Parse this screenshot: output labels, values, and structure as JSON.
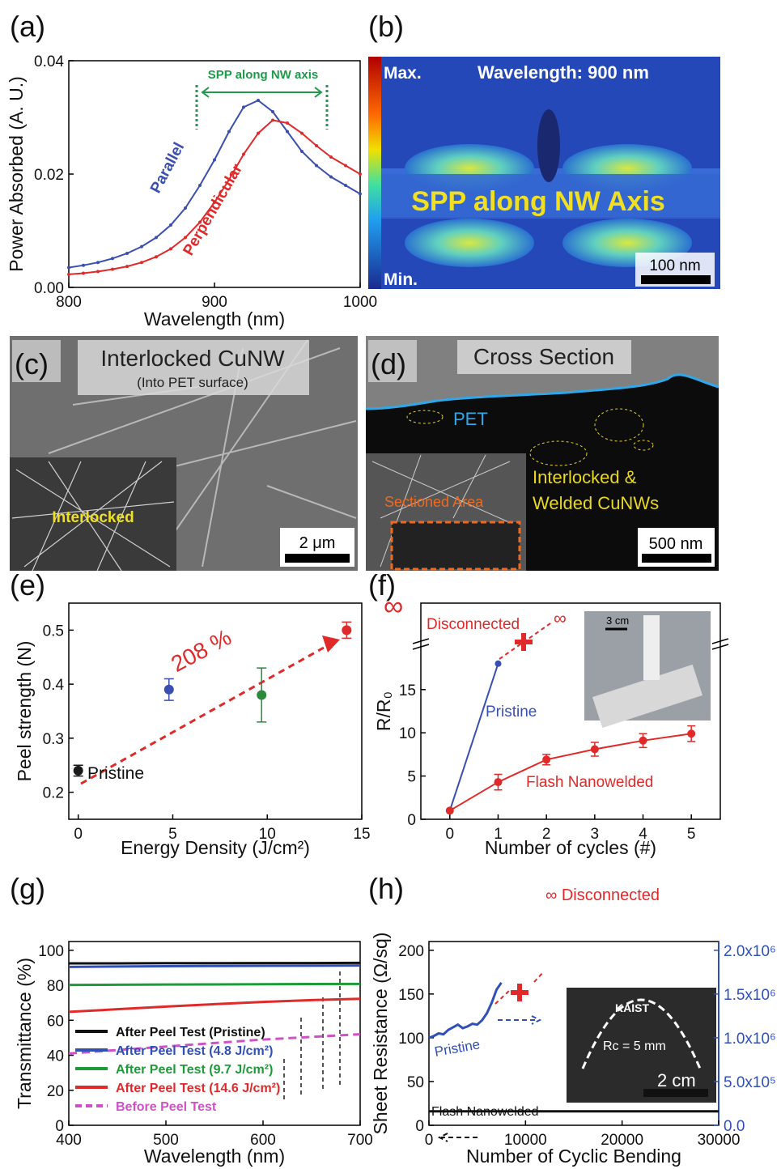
{
  "chart_data": [
    {
      "type": "line",
      "panel_label": "(a)",
      "x_label": "Wavelength (nm)",
      "y_label": "Power Absorbed (A. U.)",
      "xlim": [
        800,
        1000
      ],
      "ylim": [
        0,
        0.04
      ],
      "xticks": [
        800,
        900,
        1000
      ],
      "yticks": [
        {
          "value": 0,
          "label": "0.00"
        },
        {
          "value": 0.02,
          "label": "0.02"
        },
        {
          "value": 0.04,
          "label": "0.04"
        }
      ],
      "markers": true,
      "annotations": [
        "SPP along NW axis"
      ],
      "series": [
        {
          "name": "Parallel",
          "color": "#3a4fb0",
          "x": [
            800,
            810,
            820,
            830,
            840,
            850,
            860,
            870,
            880,
            890,
            900,
            910,
            920,
            930,
            940,
            950,
            960,
            970,
            980,
            990,
            1000
          ],
          "values": [
            0.0035,
            0.0039,
            0.0044,
            0.0051,
            0.006,
            0.0072,
            0.0088,
            0.011,
            0.014,
            0.018,
            0.0225,
            0.0275,
            0.0318,
            0.033,
            0.031,
            0.0275,
            0.024,
            0.0215,
            0.0195,
            0.018,
            0.0165
          ]
        },
        {
          "name": "Perpendicular",
          "color": "#e02a2a",
          "x": [
            800,
            810,
            820,
            830,
            840,
            850,
            860,
            870,
            880,
            890,
            900,
            910,
            920,
            930,
            940,
            950,
            960,
            970,
            980,
            990,
            1000
          ],
          "values": [
            0.0023,
            0.0025,
            0.0028,
            0.0032,
            0.0037,
            0.0044,
            0.0054,
            0.0068,
            0.0088,
            0.0115,
            0.015,
            0.019,
            0.0235,
            0.0272,
            0.0295,
            0.029,
            0.0272,
            0.025,
            0.023,
            0.0215,
            0.02
          ]
        }
      ]
    },
    {
      "type": "scatter",
      "panel_label": "(e)",
      "x_label": "Energy Density (J/cm²)",
      "y_label": "Peel strength (N)",
      "xlim": [
        -0.5,
        15
      ],
      "ylim": [
        0.15,
        0.55
      ],
      "xticks": [
        0,
        5,
        10,
        15
      ],
      "yticks": [
        0.2,
        0.3,
        0.4,
        0.5
      ],
      "annotations": [
        "Pristine",
        "208 %"
      ],
      "x": [
        0,
        4.8,
        9.7,
        14.2
      ],
      "values": [
        0.24,
        0.39,
        0.38,
        0.5
      ],
      "errors": [
        0.01,
        0.02,
        0.05,
        0.015
      ],
      "colors": [
        "#1a1a1a",
        "#3a4fb0",
        "#2a8a3a",
        "#e02a2a"
      ]
    },
    {
      "type": "line",
      "panel_label": "(f)",
      "x_label": "Number of cycles (#)",
      "y_label": "R/R₀",
      "xlim": [
        -0.6,
        5.6
      ],
      "ylim": [
        0,
        25
      ],
      "xticks": [
        0,
        1,
        2,
        3,
        4,
        5
      ],
      "yticks": [
        0,
        5,
        10,
        15
      ],
      "markers": true,
      "annotations": [
        "∞",
        "Disconnected",
        "∞",
        "3 cm"
      ],
      "series": [
        {
          "name": "Pristine",
          "color": "#3a4fb0",
          "x": [
            0,
            1
          ],
          "values": [
            1,
            18
          ]
        },
        {
          "name": "Flash Nanowelded",
          "color": "#e02a2a",
          "x": [
            0,
            1,
            2,
            3,
            4,
            5
          ],
          "values": [
            1,
            4.3,
            6.9,
            8.1,
            9.1,
            9.9
          ],
          "errors": [
            null,
            0.9,
            0.6,
            0.8,
            0.8,
            0.9
          ]
        }
      ]
    },
    {
      "type": "line",
      "panel_label": "(g)",
      "x_label": "Wavelength (nm)",
      "y_label": "Transmittance (%)",
      "xlim": [
        400,
        700
      ],
      "ylim": [
        0,
        105
      ],
      "xticks": [
        400,
        500,
        600,
        700
      ],
      "yticks": [
        0,
        20,
        40,
        60,
        80,
        100
      ],
      "legend": "lower left",
      "series": [
        {
          "name": "After Peel Test (Pristine)",
          "color": "#111111",
          "x": [
            400,
            450,
            500,
            550,
            600,
            650,
            700
          ],
          "values": [
            92.5,
            92.5,
            92.6,
            92.6,
            92.7,
            92.7,
            92.8
          ]
        },
        {
          "name": "After Peel Test (4.8 J/cm²)",
          "color": "#3050b8",
          "x": [
            400,
            450,
            500,
            550,
            600,
            650,
            700
          ],
          "values": [
            90.5,
            90.7,
            90.9,
            91,
            91.1,
            91.2,
            91.3
          ]
        },
        {
          "name": "After Peel Test (9.7 J/cm²)",
          "color": "#1f9a3a",
          "x": [
            400,
            450,
            500,
            550,
            600,
            650,
            700
          ],
          "values": [
            80.2,
            80.3,
            80.4,
            80.5,
            80.6,
            80.7,
            80.8
          ]
        },
        {
          "name": "After Peel Test (14.6 J/cm²)",
          "color": "#e02a2a",
          "x": [
            400,
            450,
            500,
            550,
            600,
            650,
            700
          ],
          "values": [
            64.8,
            66.3,
            67.8,
            69.2,
            70.5,
            71.5,
            72.3
          ]
        },
        {
          "name": "Before Peel Test",
          "color": "#d050c8",
          "dash": true,
          "x": [
            400,
            450,
            500,
            550,
            600,
            650,
            700
          ],
          "values": [
            41,
            43,
            45,
            47,
            49,
            50.5,
            52
          ]
        }
      ]
    },
    {
      "type": "line",
      "panel_label": "(h)",
      "x_label": "Number of Cyclic Bending",
      "y_label": "Sheet Resistance (Ω/sq)",
      "xlim": [
        0,
        30000
      ],
      "ylim": [
        0,
        210
      ],
      "y2lim": [
        0,
        2100000
      ],
      "xticks": [
        0,
        10000,
        20000,
        30000
      ],
      "yticks": [
        0,
        50,
        100,
        150,
        200
      ],
      "y2ticks": [
        {
          "value": 0,
          "label": "0.0"
        },
        {
          "value": 500000,
          "label": "5.0x10⁵"
        },
        {
          "value": 1000000,
          "label": "1.0x10⁶"
        },
        {
          "value": 1500000,
          "label": "1.5x10⁶"
        },
        {
          "value": 2000000,
          "label": "2.0x10⁶"
        }
      ],
      "y2color": "#3050b8",
      "annotations": [
        "∞ Disconnected",
        "Rc = 5 mm",
        "2 cm",
        "KAIST"
      ],
      "series": [
        {
          "name": "Pristine",
          "color": "#3050b8",
          "axis": "y2",
          "x": [
            0,
            500,
            1000,
            1500,
            2000,
            2500,
            3000,
            3500,
            4000,
            4500,
            5000,
            5500,
            6000,
            6500,
            7000,
            7500
          ],
          "values": [
            1000000,
            1020000,
            1050000,
            1040000,
            1090000,
            1120000,
            1150000,
            1110000,
            1130000,
            1160000,
            1150000,
            1200000,
            1280000,
            1400000,
            1550000,
            1630000
          ]
        },
        {
          "name": "Flash Nanowelded",
          "color": "#111111",
          "x": [
            0,
            30000
          ],
          "values": [
            16,
            16
          ]
        }
      ]
    }
  ],
  "image_panels": [
    {
      "label": "(b)",
      "texts": [
        "Max.",
        "Wavelength: 900 nm",
        "SPP along NW Axis",
        "Min.",
        "100 nm"
      ]
    },
    {
      "label": "(c)",
      "texts": [
        "Interlocked CuNW",
        "(Into PET surface)",
        "Interlocked",
        "2 μm"
      ]
    },
    {
      "label": "(d)",
      "texts": [
        "Cross Section",
        "PET",
        "Interlocked &",
        "Welded CuNWs",
        "Sectioned Area",
        "500 nm"
      ]
    }
  ]
}
